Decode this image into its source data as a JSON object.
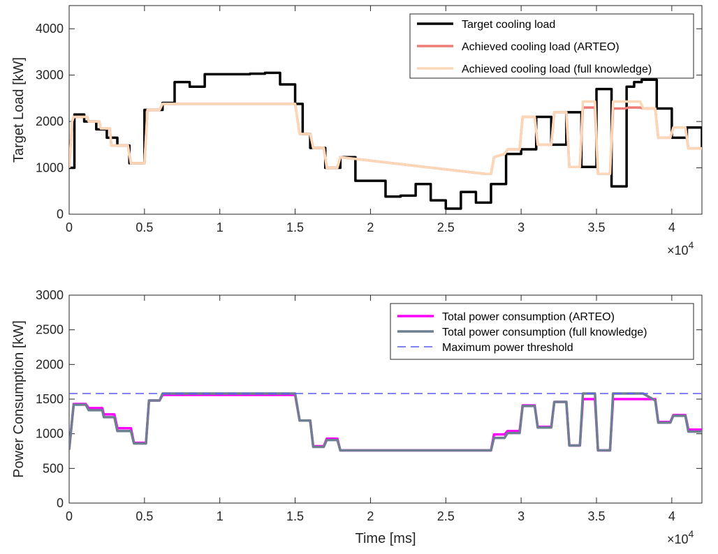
{
  "chart_data": [
    {
      "type": "line",
      "ylabel": "Target Load [kW]",
      "xlabel": "",
      "xlim": [
        0,
        42000
      ],
      "ylim": [
        0,
        4500
      ],
      "xticks": [
        0,
        5000,
        10000,
        15000,
        20000,
        25000,
        30000,
        35000,
        40000
      ],
      "xtick_labels": [
        "0",
        "0.5",
        "1",
        "1.5",
        "2",
        "2.5",
        "3",
        "3.5",
        "4"
      ],
      "yticks": [
        0,
        1000,
        2000,
        3000,
        4000
      ],
      "ytick_labels": [
        "0",
        "1000",
        "2000",
        "3000",
        "4000"
      ],
      "x_exponent": {
        "base": "×10",
        "power": "4"
      },
      "legend_position": "top-right",
      "series": [
        {
          "name": "Target cooling load",
          "color": "#000000",
          "style": "step",
          "x": [
            0,
            350,
            1000,
            1800,
            2500,
            3200,
            4000,
            5000,
            5500,
            6200,
            7000,
            8000,
            9000,
            10000,
            11000,
            12000,
            13000,
            14000,
            15000,
            15500,
            16000,
            17000,
            18000,
            19000,
            20000,
            21000,
            22000,
            23000,
            24000,
            25000,
            26000,
            27000,
            28000,
            29000,
            30000,
            31000,
            32000,
            33000,
            34000,
            35000,
            35500,
            36000,
            37000,
            37500,
            38000,
            39000,
            40000,
            41000,
            42000
          ],
          "y": [
            1000,
            2150,
            2000,
            1830,
            1650,
            1480,
            1100,
            2250,
            2250,
            2400,
            2850,
            2750,
            3020,
            3020,
            3020,
            3030,
            3050,
            2800,
            2380,
            1730,
            1430,
            1000,
            1230,
            720,
            720,
            380,
            400,
            650,
            300,
            120,
            480,
            250,
            650,
            1300,
            1400,
            2100,
            1500,
            2200,
            1020,
            2700,
            2700,
            600,
            2750,
            2850,
            2900,
            2280,
            1650,
            1870,
            1420
          ]
        },
        {
          "name": "Achieved cooling load (ARTEO)",
          "color": "#ee7b76",
          "style": "line",
          "x": [
            0,
            200,
            300,
            1200,
            1300,
            2000,
            2100,
            2700,
            2800,
            3300,
            3400,
            3900,
            4100,
            5000,
            5200,
            6000,
            6200,
            14600,
            15000,
            15300,
            16000,
            16200,
            16900,
            17100,
            17800,
            18000,
            27600,
            28000,
            28200,
            28900,
            29100,
            29900,
            30100,
            30900,
            31100,
            32000,
            32200,
            33000,
            33200,
            33900,
            34100,
            34900,
            35100,
            35900,
            36100,
            36900,
            37100,
            37900,
            38100,
            38900,
            39100,
            39900,
            40100,
            40900,
            41100,
            42000
          ],
          "y": [
            1000,
            2000,
            2100,
            2100,
            2000,
            2000,
            1850,
            1850,
            1480,
            1480,
            1480,
            1480,
            1100,
            1100,
            2250,
            2250,
            2380,
            2380,
            2380,
            1730,
            1730,
            1430,
            1430,
            1000,
            1000,
            1230,
            870,
            870,
            1230,
            1300,
            1400,
            1400,
            2100,
            2100,
            1500,
            1500,
            2200,
            2200,
            1020,
            1020,
            2300,
            2300,
            870,
            870,
            2280,
            2280,
            2300,
            2300,
            2280,
            2280,
            1650,
            1650,
            1870,
            1870,
            1420,
            1420
          ]
        },
        {
          "name": "Achieved cooling load (full knowledge)",
          "color": "#fbd6b7",
          "style": "line",
          "x": [
            0,
            200,
            300,
            1200,
            1300,
            2000,
            2100,
            2700,
            2800,
            3300,
            3400,
            3900,
            4100,
            5000,
            5200,
            6000,
            6200,
            14600,
            15000,
            15300,
            16000,
            16200,
            16900,
            17100,
            17800,
            18000,
            27600,
            28000,
            28200,
            28900,
            29100,
            29900,
            30100,
            30900,
            31100,
            32000,
            32200,
            33000,
            33200,
            33900,
            34100,
            34900,
            35100,
            35900,
            36100,
            36900,
            37100,
            37900,
            38100,
            38900,
            39100,
            39900,
            40100,
            40900,
            41100,
            42000
          ],
          "y": [
            1000,
            2000,
            2100,
            2100,
            2000,
            2000,
            1850,
            1850,
            1480,
            1480,
            1480,
            1480,
            1100,
            1100,
            2250,
            2250,
            2380,
            2380,
            2380,
            1730,
            1730,
            1430,
            1430,
            1000,
            1000,
            1230,
            870,
            870,
            1230,
            1300,
            1400,
            1400,
            2100,
            2100,
            1500,
            1500,
            2200,
            2200,
            1020,
            1020,
            2430,
            2430,
            870,
            870,
            2430,
            2430,
            2430,
            2430,
            2280,
            2280,
            1650,
            1650,
            1870,
            1870,
            1420,
            1420
          ]
        }
      ]
    },
    {
      "type": "line",
      "ylabel": "Power Consumption [kW]",
      "xlabel": "Time [ms]",
      "xlim": [
        0,
        42000
      ],
      "ylim": [
        0,
        3000
      ],
      "xticks": [
        0,
        5000,
        10000,
        15000,
        20000,
        25000,
        30000,
        35000,
        40000
      ],
      "xtick_labels": [
        "0",
        "0.5",
        "1",
        "1.5",
        "2",
        "2.5",
        "3",
        "3.5",
        "4"
      ],
      "yticks": [
        0,
        500,
        1000,
        1500,
        2000,
        2500,
        3000
      ],
      "ytick_labels": [
        "0",
        "500",
        "1000",
        "1500",
        "2000",
        "2500",
        "3000"
      ],
      "x_exponent": {
        "base": "×10",
        "power": "4"
      },
      "legend_position": "top-right",
      "series": [
        {
          "name": "Total power consumption (ARTEO)",
          "color": "#ff00ff",
          "style": "line",
          "x": [
            0,
            300,
            1100,
            1300,
            2200,
            2300,
            3000,
            3200,
            4100,
            4300,
            5100,
            5300,
            6000,
            6200,
            14600,
            15000,
            15300,
            16000,
            16200,
            16900,
            17100,
            17800,
            18000,
            27500,
            28000,
            28200,
            28900,
            29100,
            29900,
            30100,
            30900,
            31100,
            32000,
            32200,
            33000,
            33200,
            33900,
            34100,
            34900,
            35100,
            35900,
            36100,
            36900,
            37100,
            37900,
            38100,
            38900,
            39100,
            39900,
            40100,
            40900,
            41100,
            42000
          ],
          "y": [
            770,
            1430,
            1430,
            1370,
            1370,
            1280,
            1280,
            1080,
            1080,
            870,
            870,
            1480,
            1480,
            1560,
            1560,
            1560,
            1190,
            1190,
            820,
            820,
            930,
            930,
            760,
            760,
            760,
            990,
            990,
            1040,
            1040,
            1410,
            1410,
            1100,
            1100,
            1460,
            1460,
            830,
            830,
            1500,
            1500,
            760,
            760,
            1500,
            1500,
            1500,
            1500,
            1500,
            1500,
            1170,
            1170,
            1270,
            1270,
            1060,
            1060
          ]
        },
        {
          "name": "Total power consumption (full knowledge)",
          "color": "#6e7f91",
          "style": "line",
          "x": [
            0,
            300,
            1100,
            1300,
            2200,
            2300,
            3000,
            3200,
            4100,
            4300,
            5100,
            5300,
            6000,
            6200,
            14600,
            15000,
            15300,
            16000,
            16200,
            16900,
            17100,
            17800,
            18000,
            27500,
            28000,
            28200,
            28900,
            29100,
            29900,
            30100,
            30900,
            31100,
            32000,
            32200,
            33000,
            33200,
            33900,
            34100,
            34900,
            35100,
            35900,
            36100,
            36900,
            37100,
            37900,
            38100,
            38900,
            39100,
            39900,
            40100,
            40900,
            41100,
            42000
          ],
          "y": [
            770,
            1420,
            1420,
            1340,
            1340,
            1240,
            1240,
            1040,
            1040,
            860,
            860,
            1480,
            1480,
            1580,
            1580,
            1580,
            1190,
            1190,
            810,
            810,
            910,
            910,
            760,
            760,
            760,
            940,
            940,
            1010,
            1010,
            1400,
            1400,
            1090,
            1090,
            1460,
            1460,
            830,
            830,
            1580,
            1580,
            760,
            760,
            1580,
            1580,
            1580,
            1580,
            1580,
            1480,
            1160,
            1160,
            1260,
            1260,
            1030,
            1030
          ]
        },
        {
          "name": "Maximum power threshold",
          "color": "#5a5af5",
          "style": "dashed",
          "x": [
            0,
            42000
          ],
          "y": [
            1580,
            1580
          ]
        }
      ]
    }
  ]
}
